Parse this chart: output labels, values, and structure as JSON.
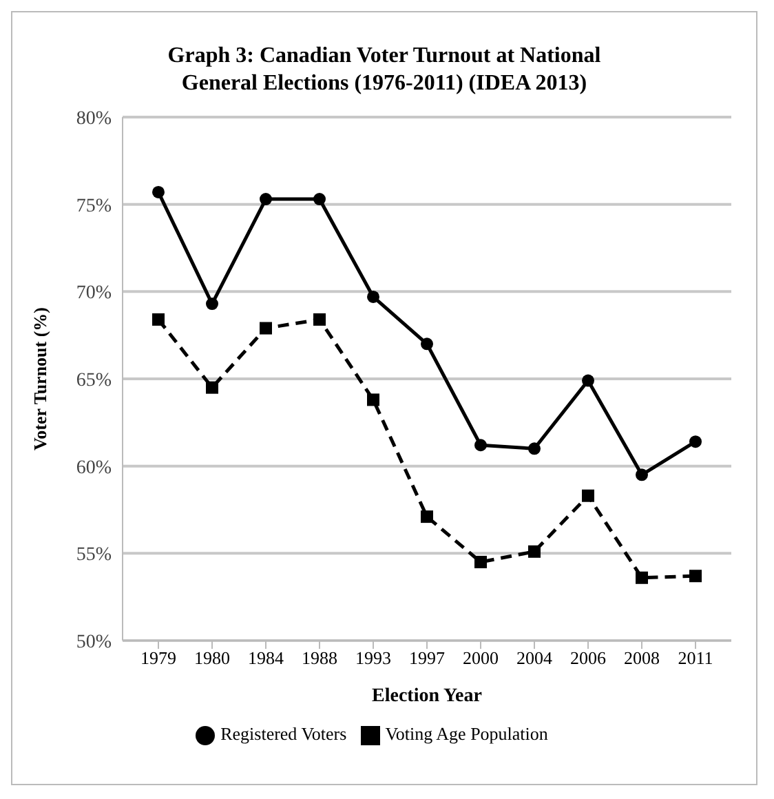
{
  "chart_data": {
    "type": "line",
    "title": "Graph 3: Canadian Voter Turnout at National General Elections (1976-2011) (IDEA 2013)",
    "xlabel": "Election Year",
    "ylabel": "Voter Turnout (%)",
    "categories": [
      "1979",
      "1980",
      "1984",
      "1988",
      "1993",
      "1997",
      "2000",
      "2004",
      "2006",
      "2008",
      "2011"
    ],
    "series": [
      {
        "name": "Registered Voters",
        "color": "#000000",
        "marker": "circle",
        "line_style": "solid",
        "values": [
          75.7,
          69.3,
          75.3,
          75.3,
          69.7,
          67.0,
          61.2,
          61.0,
          64.9,
          59.5,
          61.4
        ]
      },
      {
        "name": "Voting Age Population",
        "color": "#000000",
        "marker": "square",
        "line_style": "dashed",
        "values": [
          68.4,
          64.5,
          67.9,
          68.4,
          63.8,
          57.1,
          54.5,
          55.1,
          58.3,
          53.6,
          53.7
        ]
      }
    ],
    "ylim": [
      50,
      80
    ],
    "yticks": [
      {
        "value": 50,
        "label": "50%"
      },
      {
        "value": 55,
        "label": "55%"
      },
      {
        "value": 60,
        "label": "60%"
      },
      {
        "value": 65,
        "label": "65%"
      },
      {
        "value": 70,
        "label": "70%"
      },
      {
        "value": 75,
        "label": "75%"
      },
      {
        "value": 80,
        "label": "80%"
      }
    ],
    "grid": "y",
    "legend": "bottom"
  }
}
